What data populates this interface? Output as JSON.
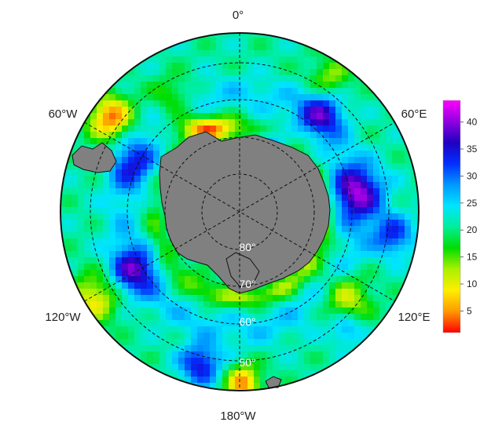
{
  "map": {
    "projection": "south-polar-stereographic",
    "longitude_labels": {
      "top": "0°",
      "upper_left": "60°W",
      "upper_right": "60°E",
      "lower_left": "120°W",
      "lower_right": "120°E",
      "bottom": "180°W"
    },
    "latitude_labels": [
      "80°",
      "70°",
      "60°",
      "50°"
    ],
    "land_color": "#808080",
    "coastline_color": "#111111"
  },
  "colorbar": {
    "min": 1,
    "max": 44,
    "tick_labels": [
      "5",
      "10",
      "15",
      "20",
      "25",
      "30",
      "35",
      "40"
    ],
    "tick_values": [
      5,
      10,
      15,
      20,
      25,
      30,
      35,
      40
    ],
    "colors": [
      "#ff0000",
      "#ff9900",
      "#ffee00",
      "#aaf000",
      "#00dd00",
      "#00ee99",
      "#00e5ff",
      "#0099ff",
      "#0030ff",
      "#2000c0",
      "#9000e0",
      "#ff00ff"
    ]
  }
}
